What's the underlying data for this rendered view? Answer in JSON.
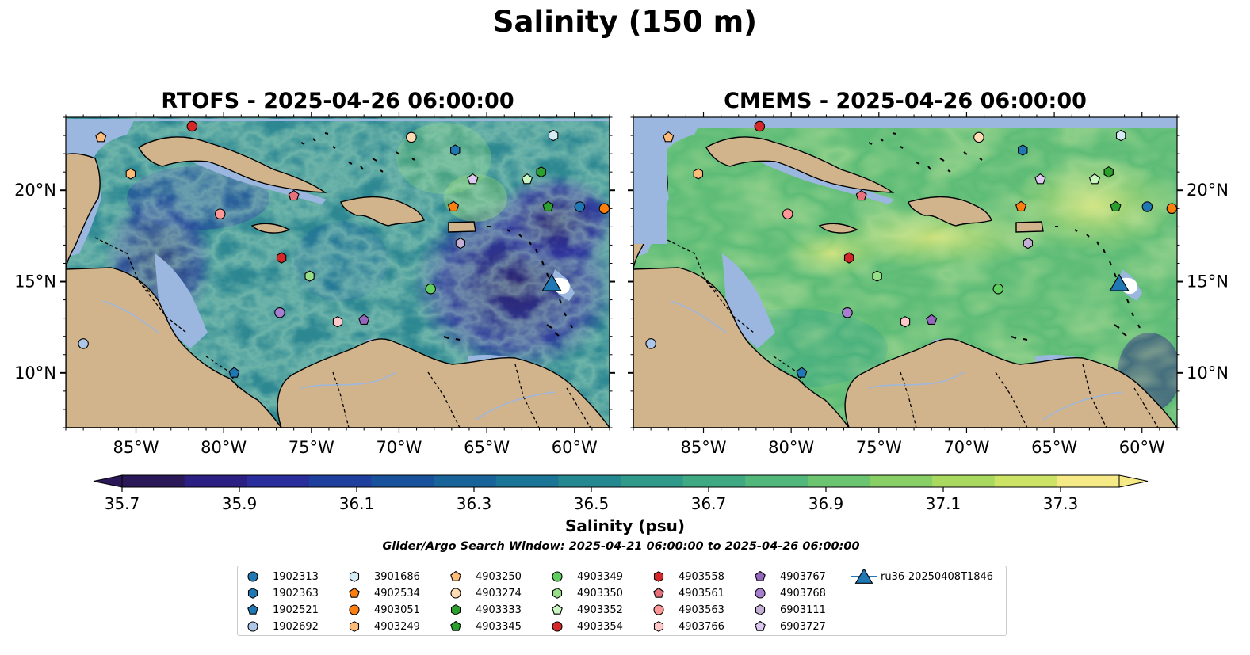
{
  "figure": {
    "title": "Salinity (150 m)",
    "search_window": "Glider/Argo Search Window: 2025-04-21 06:00:00 to 2025-04-26 06:00:00"
  },
  "panels": [
    {
      "title": "RTOFS - 2025-04-26 06:00:00",
      "model": "RTOFS"
    },
    {
      "title": "CMEMS - 2025-04-26 06:00:00",
      "model": "CMEMS"
    }
  ],
  "axes": {
    "x_ticks": [
      "85°W",
      "80°W",
      "75°W",
      "70°W",
      "65°W",
      "60°W"
    ],
    "x_tick_values": [
      -85,
      -80,
      -75,
      -70,
      -65,
      -60
    ],
    "y_ticks": [
      "20°N",
      "15°N",
      "10°N"
    ],
    "y_tick_values": [
      20,
      15,
      10
    ],
    "lon_range": [
      -89,
      -58
    ],
    "lat_range": [
      7,
      24
    ]
  },
  "colorbar": {
    "label": "Salinity (psu)",
    "ticks": [
      "35.7",
      "35.9",
      "36.1",
      "36.3",
      "36.5",
      "36.7",
      "36.9",
      "37.1",
      "37.3"
    ],
    "tick_values": [
      35.7,
      35.9,
      36.1,
      36.3,
      36.5,
      36.7,
      36.9,
      37.1,
      37.3
    ],
    "range": [
      35.7,
      37.4
    ],
    "extend": "both",
    "colors": [
      "#2a1858",
      "#2c1f84",
      "#2a2d9c",
      "#1f3f9e",
      "#19529c",
      "#17639a",
      "#1a7596",
      "#238890",
      "#2f998a",
      "#3ea983",
      "#52b77a",
      "#6bc470",
      "#88cf66",
      "#a9d95f",
      "#cce365",
      "#f5ea86"
    ]
  },
  "colors": {
    "land": "#d2b48c",
    "shelf": "#9bb7e0",
    "deep_trench": "#2a1858",
    "glider": "#1f77b4"
  },
  "legend": {
    "items": [
      {
        "label": "1902313",
        "marker": "circle",
        "color": "#1f77b4"
      },
      {
        "label": "1902363",
        "marker": "hexagon",
        "color": "#1f77b4"
      },
      {
        "label": "1902521",
        "marker": "pentagon",
        "color": "#1f77b4"
      },
      {
        "label": "1902692",
        "marker": "circle",
        "color": "#aec7e8"
      },
      {
        "label": "3901686",
        "marker": "hexagon",
        "color": "#d6ecf5"
      },
      {
        "label": "4902534",
        "marker": "pentagon",
        "color": "#ff7f0e"
      },
      {
        "label": "4903051",
        "marker": "circle",
        "color": "#ff7f0e"
      },
      {
        "label": "4903249",
        "marker": "hexagon",
        "color": "#ffbb78"
      },
      {
        "label": "4903250",
        "marker": "pentagon",
        "color": "#ffbb78"
      },
      {
        "label": "4903274",
        "marker": "circle",
        "color": "#ffdcb4"
      },
      {
        "label": "4903333",
        "marker": "hexagon",
        "color": "#2ca02c"
      },
      {
        "label": "4903345",
        "marker": "pentagon",
        "color": "#2ca02c"
      },
      {
        "label": "4903349",
        "marker": "circle",
        "color": "#5fce5f"
      },
      {
        "label": "4903350",
        "marker": "hexagon",
        "color": "#98df8a"
      },
      {
        "label": "4903352",
        "marker": "pentagon",
        "color": "#c8f5c0"
      },
      {
        "label": "4903354",
        "marker": "circle",
        "color": "#d62728"
      },
      {
        "label": "4903558",
        "marker": "hexagon",
        "color": "#d62728"
      },
      {
        "label": "4903561",
        "marker": "pentagon",
        "color": "#e8707a"
      },
      {
        "label": "4903563",
        "marker": "circle",
        "color": "#ff9896"
      },
      {
        "label": "4903766",
        "marker": "hexagon",
        "color": "#ffc8c8"
      },
      {
        "label": "4903767",
        "marker": "pentagon",
        "color": "#9467bd"
      },
      {
        "label": "4903768",
        "marker": "circle",
        "color": "#a87fd0"
      },
      {
        "label": "6903111",
        "marker": "hexagon",
        "color": "#c5b0d5"
      },
      {
        "label": "6903727",
        "marker": "pentagon",
        "color": "#dcc8f0"
      },
      {
        "label": "ru36-20250408T1846",
        "marker": "triangle",
        "color": "#1f77b4"
      }
    ]
  },
  "floats": [
    {
      "id": "4903354",
      "lon": -81.8,
      "lat": 23.5
    },
    {
      "id": "4903250",
      "lon": -87.0,
      "lat": 22.9
    },
    {
      "id": "4903274",
      "lon": -69.3,
      "lat": 22.9
    },
    {
      "id": "1902363",
      "lon": -66.8,
      "lat": 22.2
    },
    {
      "id": "3901686",
      "lon": -61.2,
      "lat": 23.0
    },
    {
      "id": "4903249",
      "lon": -85.3,
      "lat": 20.9
    },
    {
      "id": "4903333",
      "lon": -61.9,
      "lat": 21.0
    },
    {
      "id": "6903727",
      "lon": -65.8,
      "lat": 20.6
    },
    {
      "id": "4903352",
      "lon": -62.7,
      "lat": 20.6
    },
    {
      "id": "4903561",
      "lon": -76.0,
      "lat": 19.7
    },
    {
      "id": "4902534",
      "lon": -66.9,
      "lat": 19.1
    },
    {
      "id": "4903345",
      "lon": -61.5,
      "lat": 19.1
    },
    {
      "id": "1902313",
      "lon": -59.7,
      "lat": 19.1
    },
    {
      "id": "4903051",
      "lon": -58.3,
      "lat": 19.0
    },
    {
      "id": "4903563",
      "lon": -80.2,
      "lat": 18.7
    },
    {
      "id": "6903111",
      "lon": -66.5,
      "lat": 17.1
    },
    {
      "id": "4903558",
      "lon": -76.7,
      "lat": 16.3
    },
    {
      "id": "4903350",
      "lon": -75.1,
      "lat": 15.3
    },
    {
      "id": "4903349",
      "lon": -68.2,
      "lat": 14.6
    },
    {
      "id": "4903768",
      "lon": -76.8,
      "lat": 13.3
    },
    {
      "id": "4903766",
      "lon": -73.5,
      "lat": 12.8
    },
    {
      "id": "4903767",
      "lon": -72.0,
      "lat": 12.9
    },
    {
      "id": "1902692",
      "lon": -88.0,
      "lat": 11.6
    },
    {
      "id": "1902521",
      "lon": -79.4,
      "lat": 10.0
    }
  ],
  "glider": {
    "id": "ru36-20250408T1846",
    "lon": -61.3,
    "lat": 14.9
  }
}
